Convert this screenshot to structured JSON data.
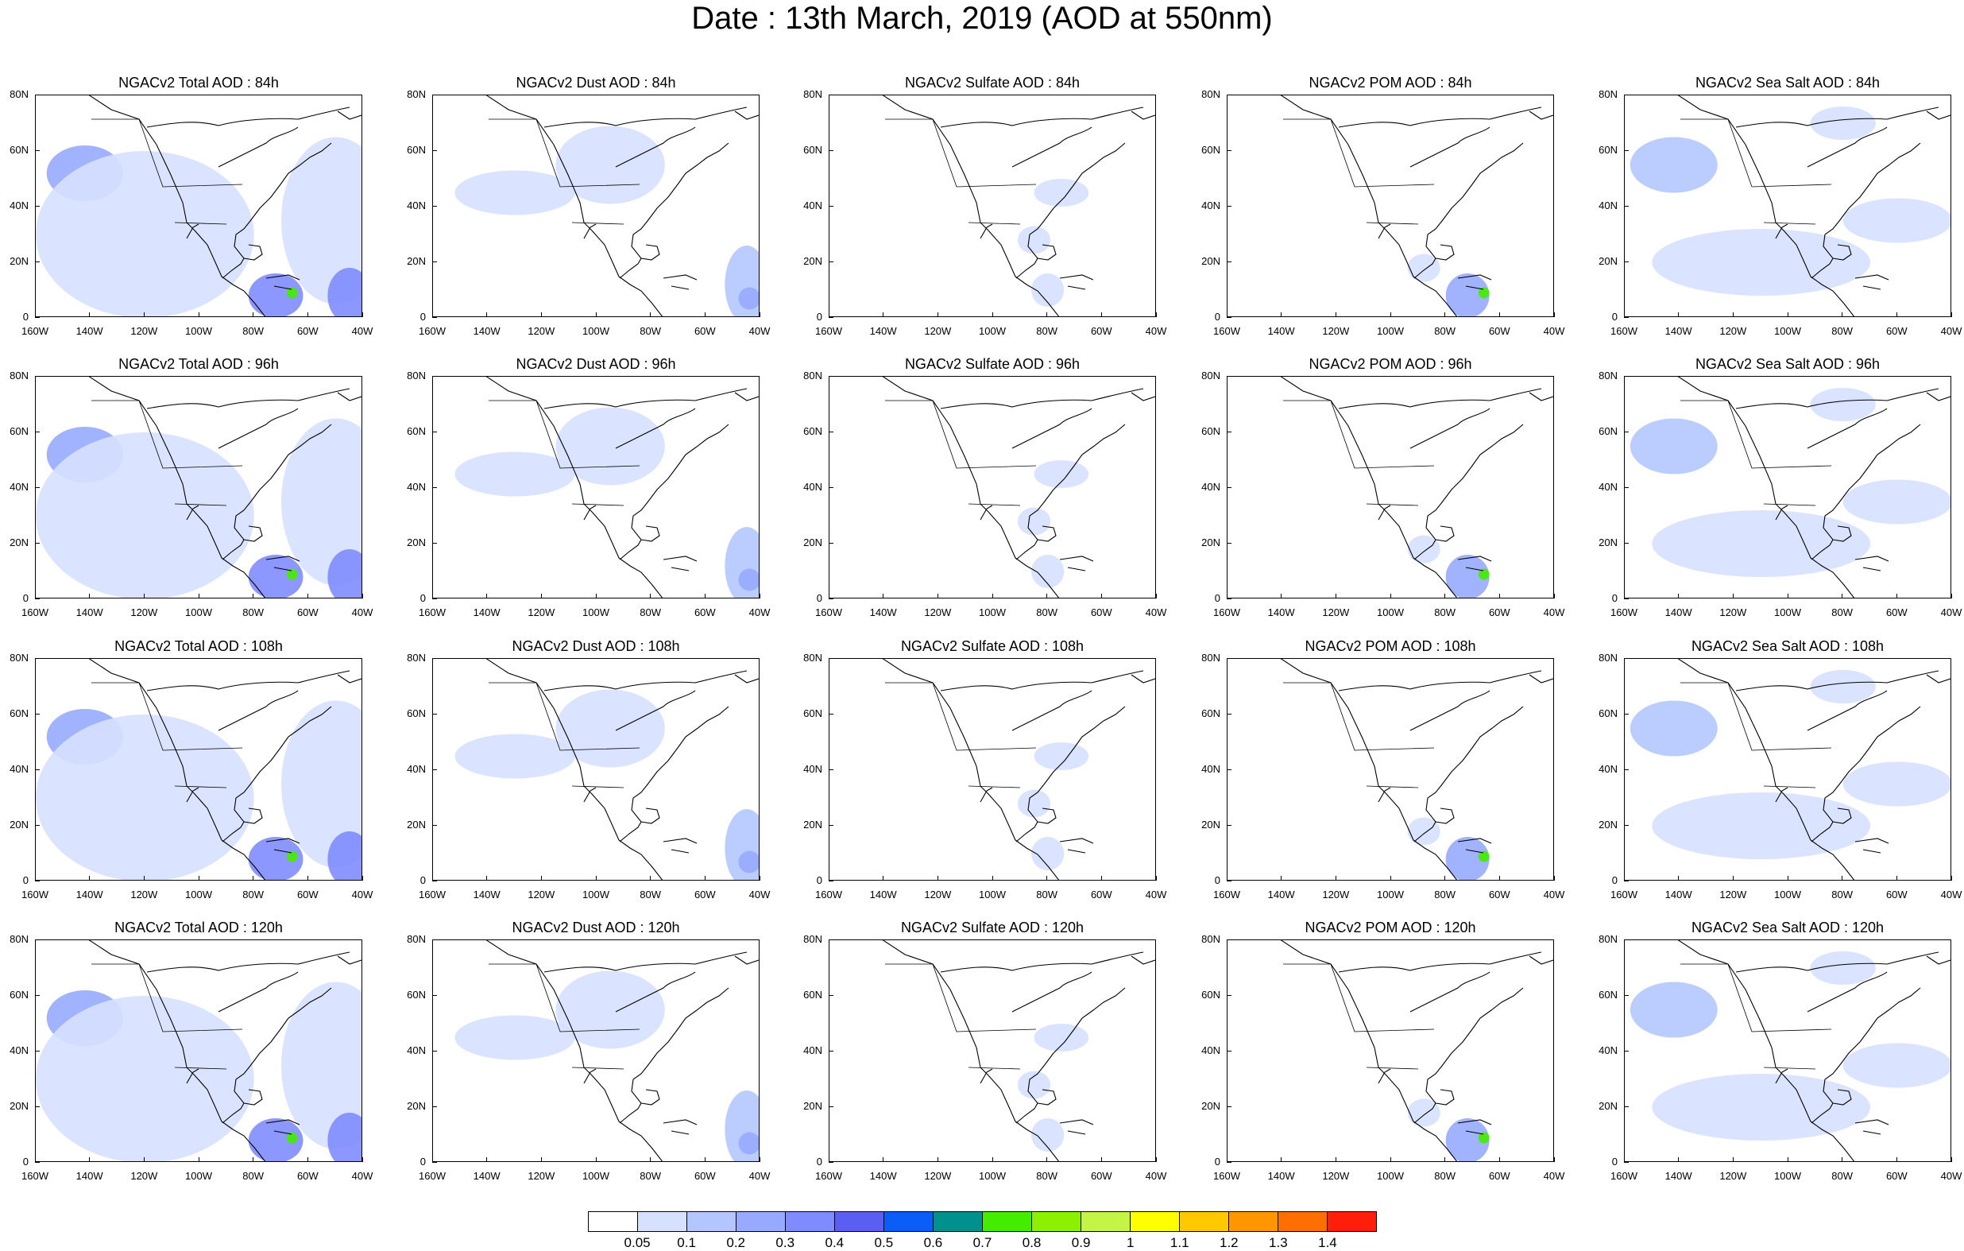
{
  "title": "Date : 13th March, 2019 (AOD at 550nm)",
  "map": {
    "lon_range": [
      -160,
      -40
    ],
    "lat_range": [
      0,
      80
    ],
    "x_tick_labels": [
      "160W",
      "140W",
      "120W",
      "100W",
      "80W",
      "60W",
      "40W"
    ],
    "y_tick_labels": [
      "0",
      "20N",
      "40N",
      "60N",
      "80N"
    ]
  },
  "panel_titles": [
    [
      "NGACv2 Total AOD : 84h",
      "NGACv2 Dust AOD : 84h",
      "NGACv2 Sulfate AOD : 84h",
      "NGACv2 POM AOD : 84h",
      "NGACv2 Sea Salt AOD : 84h"
    ],
    [
      "NGACv2 Total AOD : 96h",
      "NGACv2 Dust AOD : 96h",
      "NGACv2 Sulfate AOD : 96h",
      "NGACv2 POM AOD : 96h",
      "NGACv2 Sea Salt AOD : 96h"
    ],
    [
      "NGACv2 Total AOD : 108h",
      "NGACv2 Dust AOD : 108h",
      "NGACv2 Sulfate AOD : 108h",
      "NGACv2 POM AOD : 108h",
      "NGACv2 Sea Salt AOD : 108h"
    ],
    [
      "NGACv2 Total AOD : 120h",
      "NGACv2 Dust AOD : 120h",
      "NGACv2 Sulfate AOD : 120h",
      "NGACv2 POM AOD : 120h",
      "NGACv2 Sea Salt  AOD : 120h"
    ]
  ],
  "colorbar": {
    "labels": [
      "0.05",
      "0.1",
      "0.2",
      "0.3",
      "0.4",
      "0.5",
      "0.6",
      "0.7",
      "0.8",
      "0.9",
      "1",
      "1.1",
      "1.2",
      "1.3",
      "1.4"
    ],
    "colors": [
      "#ffffff",
      "#d6e0ff",
      "#b4c6ff",
      "#97aaff",
      "#7f8cff",
      "#5b5ef2",
      "#0a5ef7",
      "#00908e",
      "#44ec00",
      "#8cf000",
      "#c4f446",
      "#ffff00",
      "#ffc800",
      "#ff9600",
      "#ff6e00",
      "#ff1e0a"
    ]
  },
  "aod_fields": {
    "Total": [
      {
        "lon": -142,
        "lat": 52,
        "rx": 14,
        "ry": 10,
        "level": 3
      },
      {
        "lon": -120,
        "lat": 30,
        "rx": 40,
        "ry": 30,
        "level": 1
      },
      {
        "lon": -50,
        "lat": 35,
        "rx": 20,
        "ry": 30,
        "level": 1
      },
      {
        "lon": -72,
        "lat": 8,
        "rx": 10,
        "ry": 8,
        "level": 4
      },
      {
        "lon": -45,
        "lat": 8,
        "rx": 8,
        "ry": 10,
        "level": 4
      },
      {
        "lon": -66,
        "lat": 9,
        "rx": 2,
        "ry": 2,
        "level": 8
      }
    ],
    "Dust": [
      {
        "lon": -130,
        "lat": 45,
        "rx": 22,
        "ry": 8,
        "level": 1
      },
      {
        "lon": -95,
        "lat": 55,
        "rx": 20,
        "ry": 14,
        "level": 1
      },
      {
        "lon": -45,
        "lat": 12,
        "rx": 8,
        "ry": 14,
        "level": 2
      },
      {
        "lon": -44,
        "lat": 7,
        "rx": 4,
        "ry": 4,
        "level": 3
      }
    ],
    "Sulfate": [
      {
        "lon": -75,
        "lat": 45,
        "rx": 10,
        "ry": 5,
        "level": 1
      },
      {
        "lon": -85,
        "lat": 28,
        "rx": 6,
        "ry": 5,
        "level": 1
      },
      {
        "lon": -80,
        "lat": 10,
        "rx": 6,
        "ry": 6,
        "level": 1
      }
    ],
    "POM": [
      {
        "lon": -72,
        "lat": 8,
        "rx": 8,
        "ry": 8,
        "level": 3
      },
      {
        "lon": -88,
        "lat": 18,
        "rx": 6,
        "ry": 5,
        "level": 1
      },
      {
        "lon": -66,
        "lat": 9,
        "rx": 2,
        "ry": 2,
        "level": 8
      }
    ],
    "Sea Salt": [
      {
        "lon": -142,
        "lat": 55,
        "rx": 16,
        "ry": 10,
        "level": 2
      },
      {
        "lon": -110,
        "lat": 20,
        "rx": 40,
        "ry": 12,
        "level": 1
      },
      {
        "lon": -60,
        "lat": 35,
        "rx": 20,
        "ry": 8,
        "level": 1
      },
      {
        "lon": -80,
        "lat": 70,
        "rx": 12,
        "ry": 6,
        "level": 1
      }
    ]
  }
}
